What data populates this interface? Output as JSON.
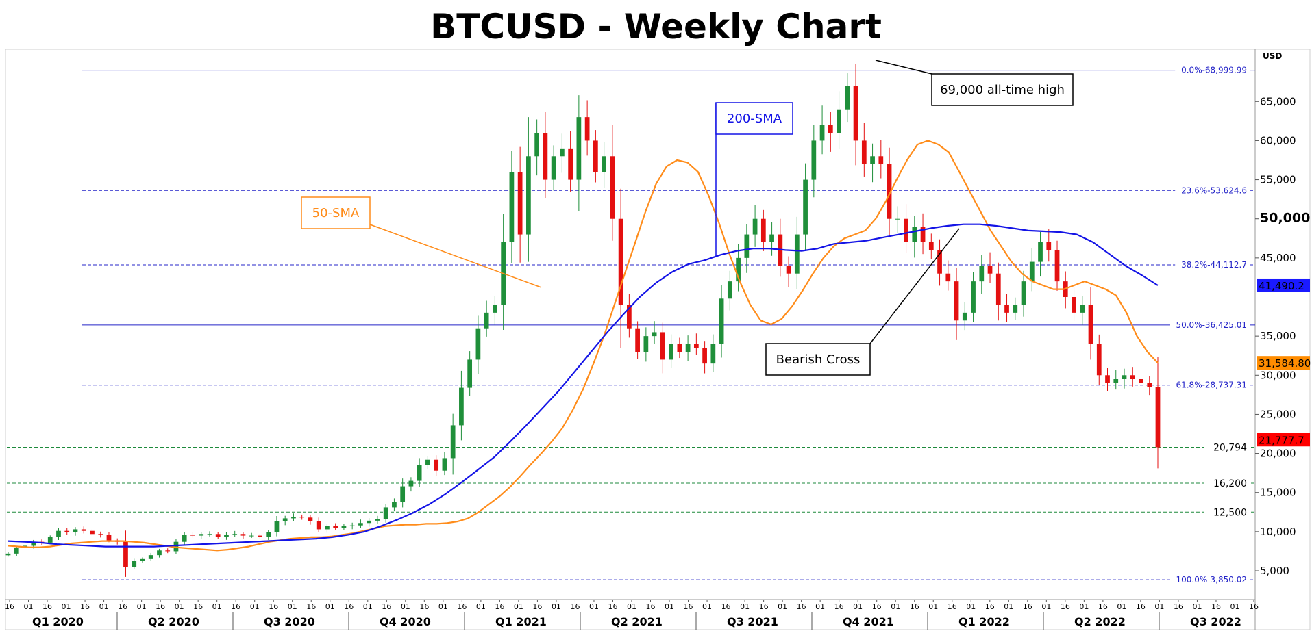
{
  "title": "BTCUSD - Weekly Chart",
  "chart_data": {
    "type": "candlestick",
    "currency_label": "USD",
    "ylim": [
      1500,
      71500
    ],
    "y_ticks": [
      {
        "value": 65000,
        "label": "65,000"
      },
      {
        "value": 60000,
        "label": "60,000"
      },
      {
        "value": 55000,
        "label": "55,000"
      },
      {
        "value": 50000,
        "label": "50,000",
        "bold": true
      },
      {
        "value": 45000,
        "label": "45,000"
      },
      {
        "value": 35000,
        "label": "35,000"
      },
      {
        "value": 30000,
        "label": "30,000"
      },
      {
        "value": 25000,
        "label": "25,000"
      },
      {
        "value": 20000,
        "label": "20,000"
      },
      {
        "value": 15000,
        "label": "15,000"
      },
      {
        "value": 10000,
        "label": "10,000"
      },
      {
        "value": 5000,
        "label": "5,000"
      }
    ],
    "fib_levels": [
      {
        "label": "0.0%",
        "value": 68999.99,
        "value_label": "68,999.99",
        "style": "solid"
      },
      {
        "label": "23.6%",
        "value": 53624.6,
        "value_label": "53,624.6",
        "style": "dashed"
      },
      {
        "label": "38.2%",
        "value": 44112.7,
        "value_label": "44,112.7",
        "style": "dashed"
      },
      {
        "label": "50.0%",
        "value": 36425.01,
        "value_label": "36,425.01",
        "style": "solid"
      },
      {
        "label": "61.8%",
        "value": 28737.31,
        "value_label": "28,737.31",
        "style": "dashed"
      },
      {
        "label": "100.0%",
        "value": 3850.02,
        "value_label": "3,850.02",
        "style": "dashed"
      }
    ],
    "support_levels": [
      {
        "value": 20794,
        "label": "20,794"
      },
      {
        "value": 16200,
        "label": "16,200"
      },
      {
        "value": 12500,
        "label": "12,500"
      }
    ],
    "price_tags": [
      {
        "value": 41490.2,
        "label": "41,490.2",
        "color": "#1a1aff"
      },
      {
        "value": 31584.8,
        "label": "31,584.80",
        "color": "#ff8c00"
      },
      {
        "value": 21777.7,
        "label": "21,777.7",
        "color": "#ff0000"
      }
    ],
    "x_ticks": [
      "16",
      "01",
      "16",
      "01",
      "16",
      "01",
      "16",
      "01",
      "16",
      "01",
      "16",
      "01",
      "16",
      "01",
      "16",
      "01",
      "16",
      "01",
      "16",
      "01",
      "16",
      "01",
      "16",
      "01",
      "16",
      "01",
      "16",
      "01",
      "16",
      "01",
      "16",
      "01",
      "16",
      "01",
      "16",
      "01",
      "16",
      "01",
      "16",
      "01",
      "16",
      "01",
      "16",
      "01",
      "16",
      "01",
      "16",
      "01",
      "16",
      "01",
      "16",
      "01",
      "16",
      "01",
      "16",
      "01",
      "16",
      "01",
      "16",
      "01",
      "16",
      "01",
      "16",
      "01",
      "16",
      "01",
      "16"
    ],
    "quarters": [
      "Q1 2020",
      "Q2 2020",
      "Q3 2020",
      "Q4 2020",
      "Q1 2021",
      "Q2 2021",
      "Q3 2021",
      "Q4 2021",
      "Q1 2022",
      "Q2 2022",
      "Q3 2022"
    ],
    "close": [
      7200,
      7900,
      8200,
      8700,
      8600,
      9300,
      10100,
      9900,
      10300,
      10100,
      9700,
      9600,
      8900,
      8700,
      5500,
      6300,
      6500,
      7000,
      7600,
      7500,
      8700,
      9600,
      9500,
      9700,
      9700,
      9300,
      9600,
      9700,
      9500,
      9500,
      9300,
      9900,
      11300,
      11700,
      11900,
      11800,
      11300,
      10300,
      10700,
      10500,
      10700,
      10800,
      11100,
      11400,
      11600,
      13100,
      13800,
      15800,
      16500,
      18500,
      19200,
      17800,
      19400,
      23600,
      28400,
      32000,
      36000,
      38000,
      39000,
      47000,
      56000,
      48000,
      58000,
      61000,
      55000,
      58000,
      59000,
      55000,
      63000,
      60000,
      56000,
      58000,
      50000,
      39000,
      36000,
      33000,
      35000,
      35500,
      32000,
      34000,
      33000,
      34000,
      33500,
      31500,
      34000,
      39800,
      42000,
      45000,
      48000,
      50000,
      47000,
      48000,
      44000,
      43000,
      48000,
      55000,
      60000,
      62000,
      61000,
      64000,
      67000,
      60000,
      57000,
      58000,
      57000,
      50000,
      50000,
      47000,
      49000,
      47000,
      46000,
      43000,
      42000,
      37000,
      38000,
      42000,
      44000,
      43000,
      39000,
      38000,
      39000,
      42000,
      44500,
      47000,
      46000,
      42000,
      40000,
      38000,
      39000,
      34000,
      30000,
      29000,
      29500,
      30000,
      29500,
      29000,
      28500,
      20794
    ],
    "sma50": [
      8200,
      8100,
      8000,
      8000,
      8100,
      8300,
      8500,
      8600,
      8700,
      8800,
      8800,
      8800,
      8700,
      8600,
      8400,
      8200,
      8000,
      7900,
      7800,
      7700,
      7600,
      7700,
      7900,
      8100,
      8400,
      8700,
      8900,
      9100,
      9200,
      9300,
      9300,
      9400,
      9600,
      9800,
      10100,
      10400,
      10700,
      10800,
      10900,
      10900,
      11000,
      11000,
      11100,
      11300,
      11700,
      12500,
      13500,
      14500,
      15700,
      17100,
      18600,
      20000,
      21500,
      23200,
      25500,
      28200,
      31500,
      35000,
      39000,
      43000,
      47000,
      51000,
      54500,
      56700,
      57500,
      57200,
      56000,
      53000,
      49500,
      45500,
      42000,
      39000,
      37000,
      36500,
      37200,
      38800,
      40800,
      43000,
      45000,
      46500,
      47500,
      48000,
      48500,
      50000,
      52300,
      55000,
      57500,
      59500,
      60000,
      59500,
      58500,
      56000,
      53500,
      51000,
      48500,
      46500,
      44500,
      43000,
      42000,
      41500,
      41000,
      41000,
      41500,
      42000,
      41500,
      41000,
      40200,
      38000,
      35000,
      33000,
      31584.8
    ],
    "sma200": [
      8800,
      8700,
      8600,
      8400,
      8300,
      8200,
      8100,
      8100,
      8100,
      8100,
      8200,
      8300,
      8400,
      8500,
      8600,
      8700,
      8800,
      8900,
      9000,
      9100,
      9300,
      9600,
      10000,
      10700,
      11500,
      12400,
      13500,
      14800,
      16300,
      17900,
      19500,
      21500,
      23600,
      25800,
      28000,
      30500,
      33000,
      35500,
      37800,
      40000,
      41800,
      43200,
      44200,
      44700,
      45400,
      45900,
      46200,
      46200,
      46000,
      45900,
      46200,
      46800,
      47000,
      47200,
      47600,
      48000,
      48400,
      48800,
      49100,
      49300,
      49300,
      49100,
      48800,
      48500,
      48400,
      48300,
      48000,
      47000,
      45500,
      44000,
      42800,
      41490.2
    ],
    "annotations": {
      "ath": "69,000 all-time high",
      "sma200": "200-SMA",
      "sma50": "50-SMA",
      "cross": "Bearish Cross"
    }
  }
}
